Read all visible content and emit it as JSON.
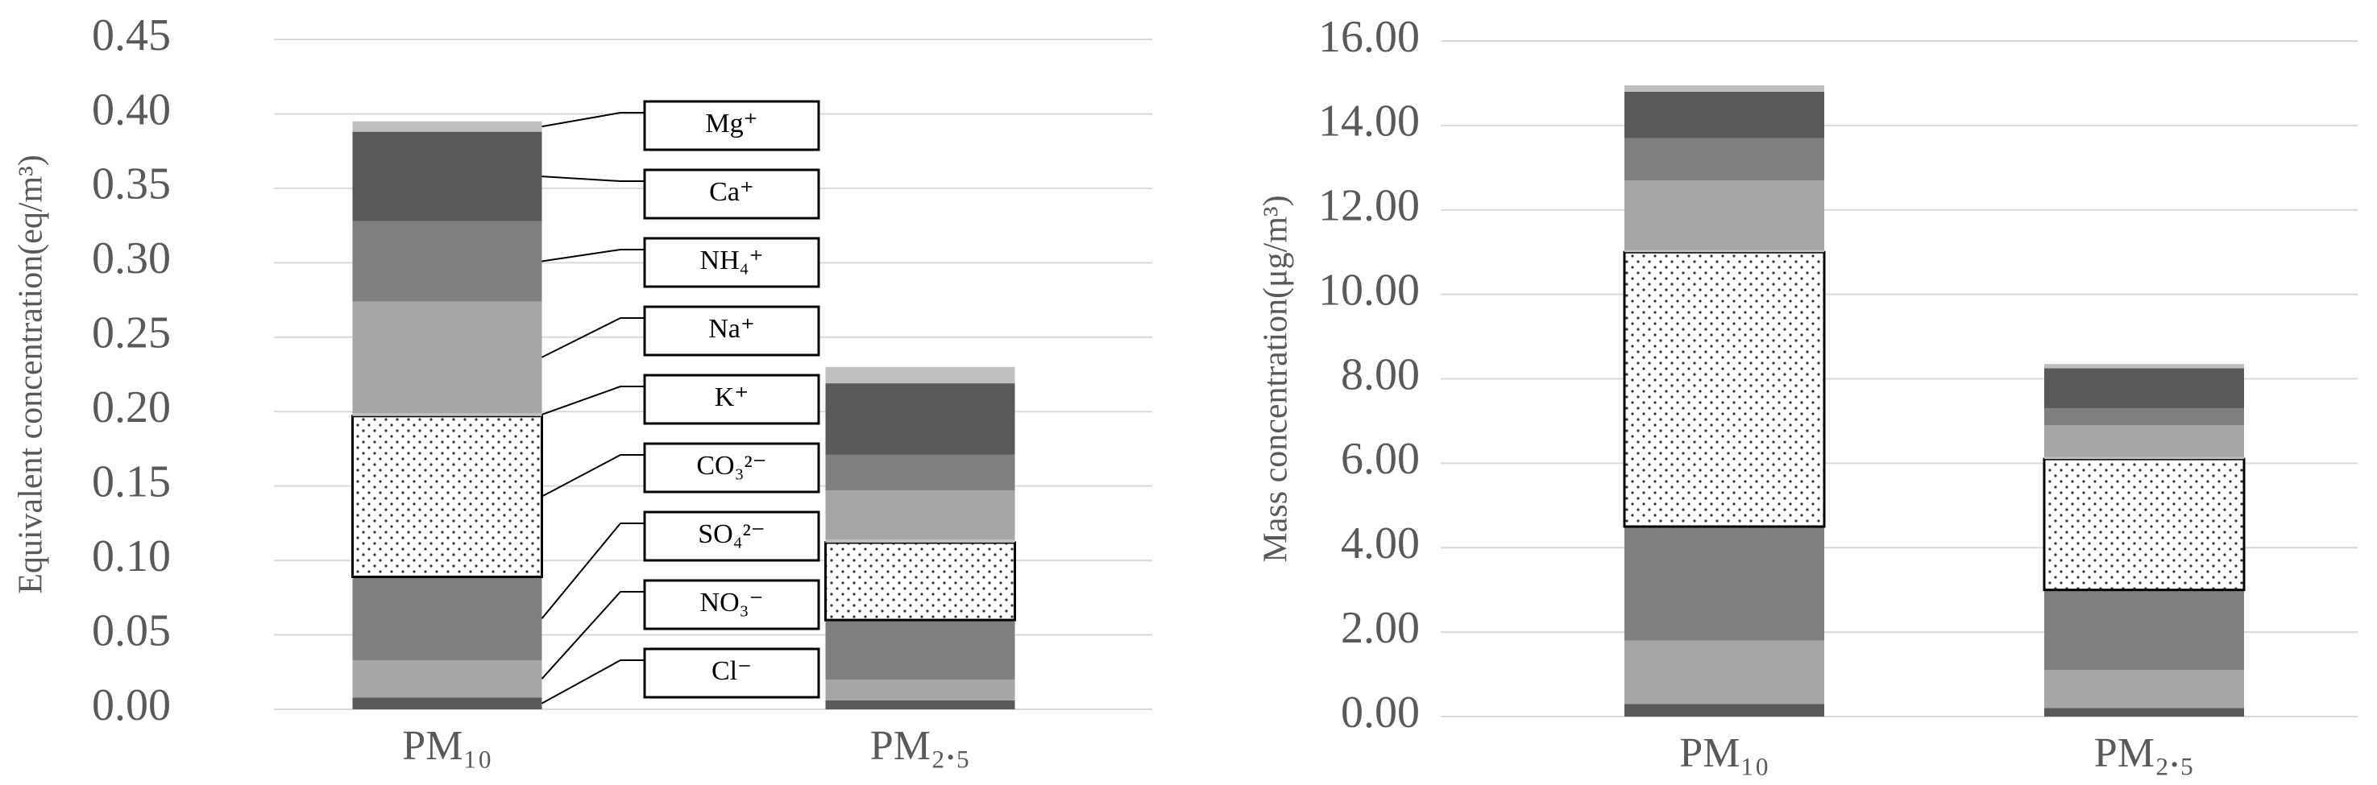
{
  "chart_data": [
    {
      "type": "bar",
      "stacked": true,
      "y_label": "Equivalent concentration(eq/m³)",
      "categories": [
        "PM₁₀",
        "PM₂.₅"
      ],
      "series": [
        {
          "name": "Cl⁻",
          "color": "#595959",
          "values": [
            0.008,
            0.006
          ]
        },
        {
          "name": "NO₃⁻",
          "color": "#a6a6a6",
          "values": [
            0.025,
            0.014
          ]
        },
        {
          "name": "SO₄²⁻",
          "color": "#7f7f7f",
          "values": [
            0.056,
            0.04
          ]
        },
        {
          "name": "CO₃²⁻",
          "color": "#ffffff",
          "pattern": "dots",
          "values": [
            0.108,
            0.052
          ]
        },
        {
          "name": "K⁺",
          "color": "#bfbfbf",
          "values": [
            0.002,
            0.002
          ]
        },
        {
          "name": "Na⁺",
          "color": "#a6a6a6",
          "values": [
            0.075,
            0.033
          ]
        },
        {
          "name": "NH₄⁺",
          "color": "#7f7f7f",
          "values": [
            0.054,
            0.024
          ]
        },
        {
          "name": "Ca⁺",
          "color": "#595959",
          "values": [
            0.06,
            0.048
          ]
        },
        {
          "name": "Mg⁺",
          "color": "#bfbfbf",
          "values": [
            0.007,
            0.011
          ]
        }
      ],
      "ylim": [
        0,
        0.45
      ],
      "yticks": [
        {
          "value": 0,
          "label": "0.00"
        },
        0.05,
        {
          "value": 0.1,
          "label": "0.10"
        },
        0.15,
        {
          "value": 0.2,
          "label": "0.20"
        },
        0.25,
        {
          "value": 0.3,
          "label": "0.30"
        },
        0.35,
        {
          "value": 0.4,
          "label": "0.40"
        },
        0.45
      ],
      "grid": true,
      "legend": "callout"
    },
    {
      "type": "bar",
      "stacked": true,
      "y_label": "Mass concentration(μg/m³)",
      "categories": [
        "PM₁₀",
        "PM₂.₅"
      ],
      "series": [
        {
          "color": "#595959",
          "values": [
            0.3,
            0.2
          ]
        },
        {
          "color": "#a6a6a6",
          "values": [
            1.5,
            0.9
          ]
        },
        {
          "color": "#7f7f7f",
          "values": [
            2.7,
            1.9
          ]
        },
        {
          "color": "#ffffff",
          "pattern": "dots",
          "values": [
            6.5,
            3.1
          ]
        },
        {
          "color": "#bfbfbf",
          "values": [
            0.05,
            0.05
          ]
        },
        {
          "color": "#a6a6a6",
          "values": [
            1.65,
            0.75
          ]
        },
        {
          "color": "#7f7f7f",
          "values": [
            1.0,
            0.4
          ]
        },
        {
          "color": "#595959",
          "values": [
            1.1,
            0.95
          ]
        },
        {
          "color": "#bfbfbf",
          "values": [
            0.15,
            0.1
          ]
        }
      ],
      "ylim": [
        0,
        16
      ],
      "yticks": [
        {
          "value": 0,
          "label": "0.00"
        },
        {
          "value": 2,
          "label": "2.00"
        },
        {
          "value": 4,
          "label": "4.00"
        },
        {
          "value": 6,
          "label": "6.00"
        },
        {
          "value": 8,
          "label": "8.00"
        },
        {
          "value": 10,
          "label": "10.00"
        },
        {
          "value": 12,
          "label": "12.00"
        },
        {
          "value": 14,
          "label": "14.00"
        },
        {
          "value": 16,
          "label": "16.00"
        }
      ],
      "grid": true
    }
  ]
}
